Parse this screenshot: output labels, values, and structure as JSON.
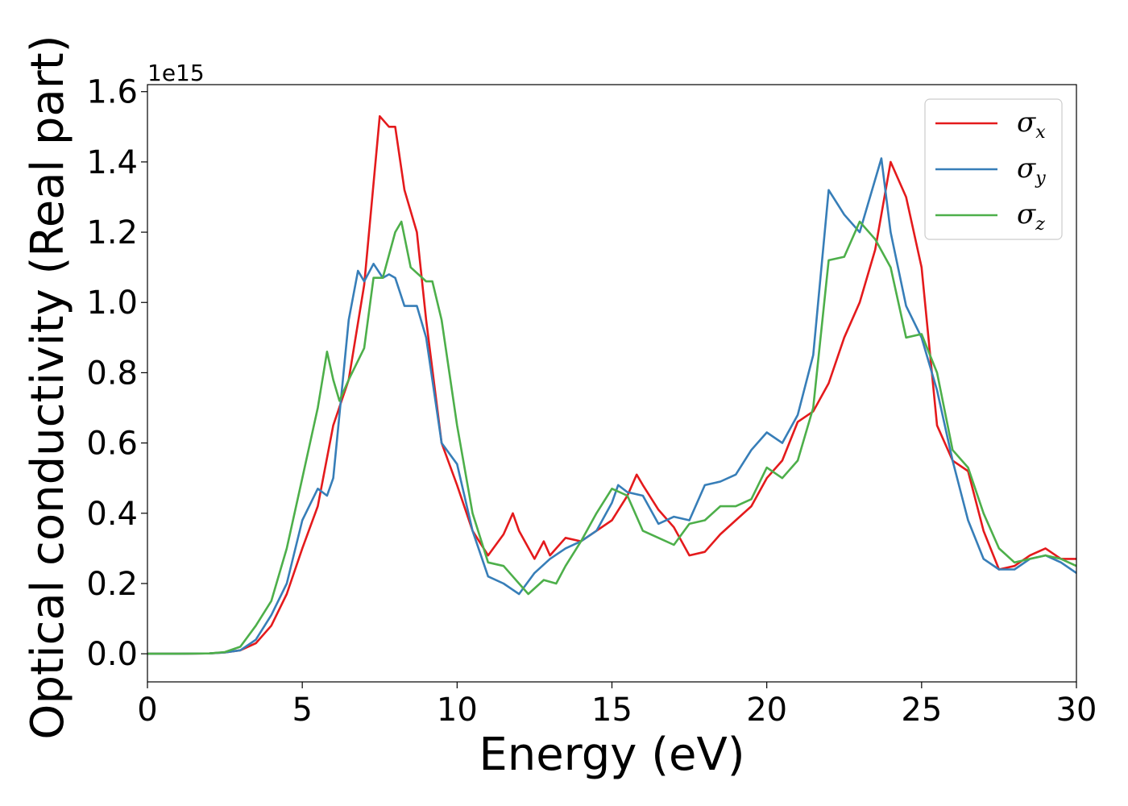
{
  "chart_data": {
    "type": "line",
    "xlabel": "Energy (eV)",
    "ylabel": "Optical conductivity (Real part)",
    "y_offset_text": "1e15",
    "xlim": [
      0,
      30
    ],
    "ylim": [
      -0.08,
      1.62
    ],
    "x_ticks": [
      0,
      5,
      10,
      15,
      20,
      25,
      30
    ],
    "x_tick_labels": [
      "0",
      "5",
      "10",
      "15",
      "20",
      "25",
      "30"
    ],
    "y_ticks": [
      0.0,
      0.2,
      0.4,
      0.6,
      0.8,
      1.0,
      1.2,
      1.4,
      1.6
    ],
    "y_tick_labels": [
      "0.0",
      "0.2",
      "0.4",
      "0.6",
      "0.8",
      "1.0",
      "1.2",
      "1.4",
      "1.6"
    ],
    "grid": false,
    "legend_position": "top-right",
    "series": [
      {
        "name": "σ_x",
        "label_base": "σ",
        "label_sub": "x",
        "color": "#e41a1c",
        "x": [
          0,
          1,
          2,
          2.5,
          3,
          3.5,
          4,
          4.5,
          5,
          5.5,
          6,
          6.5,
          7,
          7.5,
          7.8,
          8,
          8.3,
          8.7,
          9,
          9.5,
          10,
          10.5,
          11,
          11.5,
          11.8,
          12,
          12.5,
          12.8,
          13,
          13.5,
          14,
          14.5,
          15,
          15.5,
          15.8,
          16,
          16.5,
          17,
          17.5,
          18,
          18.5,
          19,
          19.5,
          20,
          20.5,
          21,
          21.5,
          22,
          22.5,
          23,
          23.5,
          24,
          24.5,
          25,
          25.5,
          26,
          26.5,
          27,
          27.5,
          28,
          28.5,
          29,
          29.5,
          30
        ],
        "y": [
          0,
          0,
          0.001,
          0.004,
          0.01,
          0.03,
          0.08,
          0.17,
          0.3,
          0.42,
          0.65,
          0.78,
          1.05,
          1.53,
          1.5,
          1.5,
          1.32,
          1.2,
          0.95,
          0.6,
          0.48,
          0.35,
          0.28,
          0.34,
          0.4,
          0.35,
          0.27,
          0.32,
          0.28,
          0.33,
          0.32,
          0.35,
          0.38,
          0.45,
          0.51,
          0.48,
          0.41,
          0.36,
          0.28,
          0.29,
          0.34,
          0.38,
          0.42,
          0.5,
          0.55,
          0.66,
          0.69,
          0.77,
          0.9,
          1.0,
          1.15,
          1.4,
          1.3,
          1.1,
          0.65,
          0.55,
          0.52,
          0.35,
          0.24,
          0.25,
          0.28,
          0.3,
          0.27,
          0.27
        ]
      },
      {
        "name": "σ_y",
        "label_base": "σ",
        "label_sub": "y",
        "color": "#377eb8",
        "x": [
          0,
          1,
          2,
          2.5,
          3,
          3.5,
          4,
          4.5,
          5,
          5.5,
          5.8,
          6,
          6.5,
          6.8,
          7,
          7.3,
          7.6,
          7.8,
          8,
          8.3,
          8.7,
          9,
          9.5,
          10,
          10.5,
          11,
          11.5,
          12,
          12.5,
          13,
          13.5,
          14,
          14.5,
          15,
          15.2,
          15.5,
          16,
          16.5,
          17,
          17.5,
          18,
          18.5,
          19,
          19.5,
          20,
          20.5,
          21,
          21.5,
          22,
          22.5,
          23,
          23.5,
          23.7,
          24,
          24.5,
          25,
          25.5,
          26,
          26.5,
          27,
          27.5,
          28,
          28.5,
          29,
          29.5,
          30
        ],
        "y": [
          0,
          0,
          0.001,
          0.004,
          0.01,
          0.04,
          0.11,
          0.2,
          0.38,
          0.47,
          0.45,
          0.5,
          0.95,
          1.09,
          1.06,
          1.11,
          1.07,
          1.08,
          1.07,
          0.99,
          0.99,
          0.9,
          0.6,
          0.54,
          0.35,
          0.22,
          0.2,
          0.17,
          0.23,
          0.27,
          0.3,
          0.32,
          0.35,
          0.43,
          0.48,
          0.46,
          0.45,
          0.37,
          0.39,
          0.38,
          0.48,
          0.49,
          0.51,
          0.58,
          0.63,
          0.6,
          0.68,
          0.85,
          1.32,
          1.25,
          1.2,
          1.35,
          1.41,
          1.2,
          0.99,
          0.9,
          0.75,
          0.55,
          0.38,
          0.27,
          0.24,
          0.24,
          0.27,
          0.28,
          0.26,
          0.23
        ]
      },
      {
        "name": "σ_z",
        "label_base": "σ",
        "label_sub": "z",
        "color": "#4daf4a",
        "x": [
          0,
          1,
          2,
          2.5,
          3,
          3.5,
          4,
          4.5,
          5,
          5.5,
          5.8,
          6,
          6.2,
          6.5,
          7,
          7.3,
          7.6,
          8,
          8.2,
          8.5,
          9,
          9.2,
          9.5,
          10,
          10.5,
          11,
          11.5,
          12,
          12.3,
          12.8,
          13.2,
          13.5,
          14,
          14.5,
          15,
          15.5,
          16,
          16.5,
          17,
          17.5,
          18,
          18.5,
          19,
          19.5,
          20,
          20.5,
          21,
          21.5,
          22,
          22.5,
          23,
          23.5,
          24,
          24.5,
          25,
          25.5,
          26,
          26.5,
          27,
          27.5,
          28,
          28.5,
          29,
          29.5,
          30
        ],
        "y": [
          0,
          0,
          0.001,
          0.005,
          0.02,
          0.08,
          0.15,
          0.3,
          0.5,
          0.7,
          0.86,
          0.78,
          0.72,
          0.78,
          0.87,
          1.07,
          1.07,
          1.2,
          1.23,
          1.1,
          1.06,
          1.06,
          0.95,
          0.65,
          0.4,
          0.26,
          0.25,
          0.2,
          0.17,
          0.21,
          0.2,
          0.25,
          0.32,
          0.4,
          0.47,
          0.45,
          0.35,
          0.33,
          0.31,
          0.37,
          0.38,
          0.42,
          0.42,
          0.44,
          0.53,
          0.5,
          0.55,
          0.7,
          1.12,
          1.13,
          1.23,
          1.18,
          1.1,
          0.9,
          0.91,
          0.8,
          0.58,
          0.53,
          0.4,
          0.3,
          0.26,
          0.27,
          0.28,
          0.27,
          0.25
        ]
      }
    ]
  }
}
